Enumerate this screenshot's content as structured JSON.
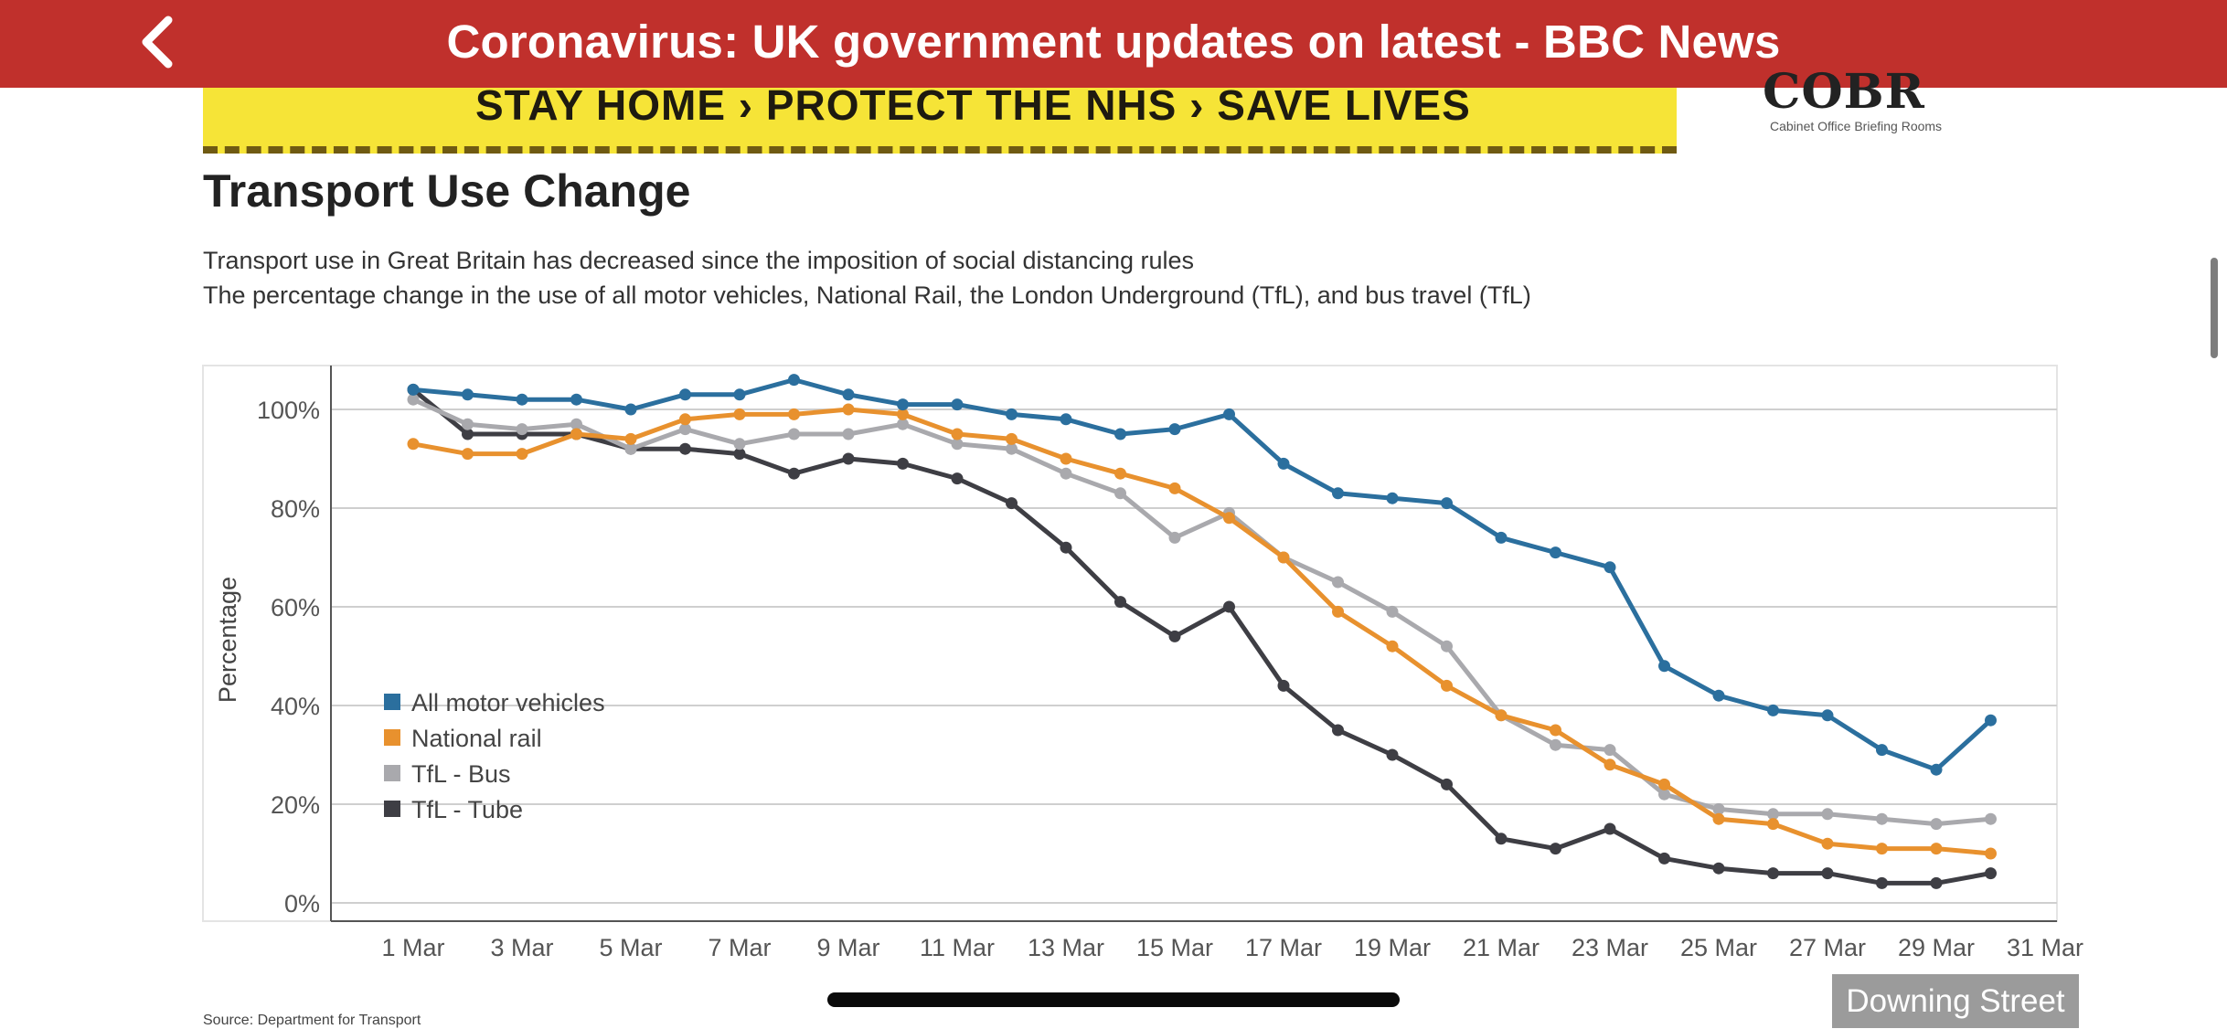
{
  "header": {
    "title": "Coronavirus: UK government updates on latest - BBC News"
  },
  "banner": {
    "text": "STAY HOME › PROTECT THE NHS › SAVE LIVES"
  },
  "logo": {
    "name": "COBR",
    "subtitle": "Cabinet Office Briefing Rooms"
  },
  "caption": "Downing Street",
  "source": "Source: Department for Transport",
  "colors": {
    "header": "#c0302c",
    "motor": "#2b6f9e",
    "rail": "#e8912e",
    "bus": "#a9a9ad",
    "tube": "#3e3e44"
  },
  "chart_data": {
    "type": "line",
    "title": "Transport Use Change",
    "subtitle": [
      "Transport use in Great Britain has decreased since the imposition of social distancing rules",
      "The percentage change in the use of all motor vehicles, National Rail, the London Underground (TfL), and bus travel (TfL)"
    ],
    "ylabel": "Percentage",
    "ylim": [
      0,
      100
    ],
    "yticks": [
      0,
      20,
      40,
      60,
      80,
      100
    ],
    "ytick_labels": [
      "0%",
      "20%",
      "40%",
      "60%",
      "80%",
      "100%"
    ],
    "x": [
      1,
      2,
      3,
      4,
      5,
      6,
      7,
      8,
      9,
      10,
      11,
      12,
      13,
      14,
      15,
      16,
      17,
      18,
      19,
      20,
      21,
      22,
      23,
      24,
      25,
      26,
      27,
      28,
      29,
      30
    ],
    "xticks": [
      1,
      3,
      5,
      7,
      9,
      11,
      13,
      15,
      17,
      19,
      21,
      23,
      25,
      27,
      29,
      31
    ],
    "xtick_labels": [
      "1 Mar",
      "3 Mar",
      "5 Mar",
      "7 Mar",
      "9 Mar",
      "11 Mar",
      "13 Mar",
      "15 Mar",
      "17 Mar",
      "19 Mar",
      "21 Mar",
      "23 Mar",
      "25 Mar",
      "27 Mar",
      "29 Mar",
      "31 Mar"
    ],
    "legend_position": "bottom-left",
    "grid": true,
    "series": [
      {
        "name": "All motor vehicles",
        "color": "#2b6f9e",
        "values": [
          104,
          103,
          102,
          102,
          100,
          103,
          103,
          106,
          103,
          101,
          101,
          99,
          98,
          95,
          96,
          99,
          89,
          83,
          82,
          81,
          74,
          71,
          68,
          48,
          42,
          39,
          38,
          31,
          27,
          37
        ]
      },
      {
        "name": "National rail",
        "color": "#e8912e",
        "values": [
          93,
          91,
          91,
          95,
          94,
          98,
          99,
          99,
          100,
          99,
          95,
          94,
          90,
          87,
          84,
          78,
          70,
          59,
          52,
          44,
          38,
          35,
          28,
          24,
          17,
          16,
          12,
          11,
          11,
          10
        ]
      },
      {
        "name": "TfL - Bus",
        "color": "#a9a9ad",
        "values": [
          102,
          97,
          96,
          97,
          92,
          96,
          93,
          95,
          95,
          97,
          93,
          92,
          87,
          83,
          74,
          79,
          70,
          65,
          59,
          52,
          38,
          32,
          31,
          22,
          19,
          18,
          18,
          17,
          16,
          17
        ]
      },
      {
        "name": "TfL - Tube",
        "color": "#3e3e44",
        "values": [
          104,
          95,
          95,
          95,
          92,
          92,
          91,
          87,
          90,
          89,
          86,
          81,
          72,
          61,
          54,
          60,
          44,
          35,
          30,
          24,
          13,
          11,
          15,
          9,
          7,
          6,
          6,
          4,
          4,
          6
        ]
      }
    ]
  }
}
